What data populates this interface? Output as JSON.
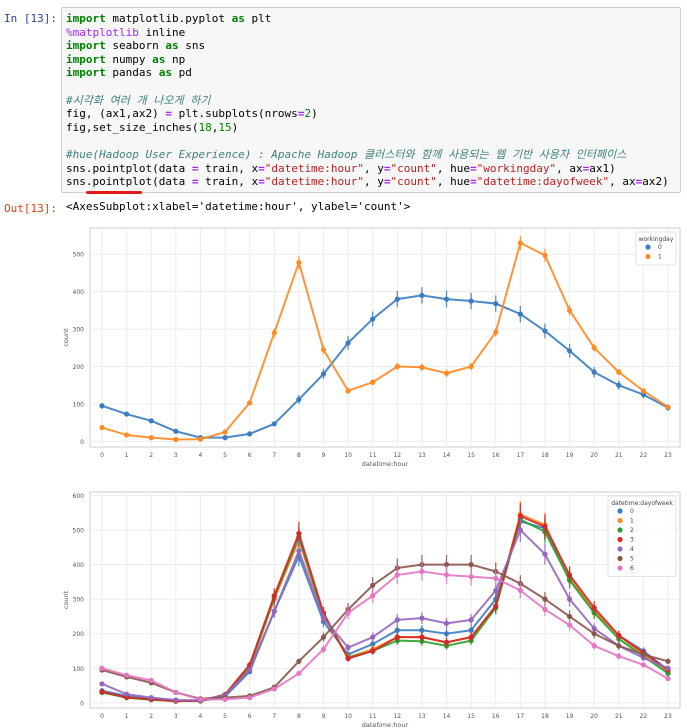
{
  "cells": {
    "in_prompt": "In [13]:",
    "out_prompt": "Out[13]:",
    "code_lines": [
      [
        {
          "t": "import",
          "c": "kw"
        },
        {
          "t": " matplotlib.pyplot ",
          "c": ""
        },
        {
          "t": "as",
          "c": "kw"
        },
        {
          "t": " plt",
          "c": ""
        }
      ],
      [
        {
          "t": "%matplotlib",
          "c": "mg"
        },
        {
          "t": " inline",
          "c": ""
        }
      ],
      [
        {
          "t": "import",
          "c": "kw"
        },
        {
          "t": " seaborn ",
          "c": ""
        },
        {
          "t": "as",
          "c": "kw"
        },
        {
          "t": " sns",
          "c": ""
        }
      ],
      [
        {
          "t": "import",
          "c": "kw"
        },
        {
          "t": " numpy ",
          "c": ""
        },
        {
          "t": "as",
          "c": "kw"
        },
        {
          "t": " np",
          "c": ""
        }
      ],
      [
        {
          "t": "import",
          "c": "kw"
        },
        {
          "t": " pandas ",
          "c": ""
        },
        {
          "t": "as",
          "c": "kw"
        },
        {
          "t": " pd",
          "c": ""
        }
      ],
      [],
      [
        {
          "t": "#시각화 여러 개 나오게 하기",
          "c": "cm"
        }
      ],
      [
        {
          "t": "fig, (ax1,ax2) ",
          "c": ""
        },
        {
          "t": "=",
          "c": "op"
        },
        {
          "t": " plt.subplots(nrows",
          "c": ""
        },
        {
          "t": "=",
          "c": "op"
        },
        {
          "t": "2",
          "c": "num"
        },
        {
          "t": ")",
          "c": ""
        }
      ],
      [
        {
          "t": "fig,set_size_inches(",
          "c": ""
        },
        {
          "t": "18",
          "c": "num"
        },
        {
          "t": ",",
          "c": ""
        },
        {
          "t": "15",
          "c": "num"
        },
        {
          "t": ")",
          "c": ""
        }
      ],
      [],
      [
        {
          "t": "#hue(Hadoop User Experience) : Apache Hadoop 클러스터와 함께 사용되는 웹 기반 사용자 인터페이스",
          "c": "cm"
        }
      ],
      [
        {
          "t": "sns.pointplot(data ",
          "c": ""
        },
        {
          "t": "=",
          "c": "op"
        },
        {
          "t": " train, x",
          "c": ""
        },
        {
          "t": "=",
          "c": "op"
        },
        {
          "t": "\"datetime:hour\"",
          "c": "str"
        },
        {
          "t": ", y",
          "c": ""
        },
        {
          "t": "=",
          "c": "op"
        },
        {
          "t": "\"count\"",
          "c": "str"
        },
        {
          "t": ", hue",
          "c": ""
        },
        {
          "t": "=",
          "c": "op"
        },
        {
          "t": "\"workingday\"",
          "c": "str"
        },
        {
          "t": ", ax",
          "c": ""
        },
        {
          "t": "=",
          "c": "op"
        },
        {
          "t": "ax1)",
          "c": ""
        }
      ],
      [
        {
          "t": "sns.pointplot(data ",
          "c": ""
        },
        {
          "t": "=",
          "c": "op"
        },
        {
          "t": " train, x",
          "c": ""
        },
        {
          "t": "=",
          "c": "op"
        },
        {
          "t": "\"datetime:hour\"",
          "c": "str"
        },
        {
          "t": ", y",
          "c": ""
        },
        {
          "t": "=",
          "c": "op"
        },
        {
          "t": "\"count\"",
          "c": "str"
        },
        {
          "t": ", hue",
          "c": ""
        },
        {
          "t": "=",
          "c": "op"
        },
        {
          "t": "\"datetime:dayofweek\"",
          "c": "str"
        },
        {
          "t": ", ax",
          "c": ""
        },
        {
          "t": "=",
          "c": "op"
        },
        {
          "t": "ax2)",
          "c": ""
        }
      ]
    ],
    "output_text": "<AxesSubplot:xlabel='datetime:hour', ylabel='count'>"
  },
  "chart_data": [
    {
      "type": "line",
      "xlabel": "datetime:hour",
      "ylabel": "count",
      "categories": [
        "0",
        "1",
        "2",
        "3",
        "4",
        "5",
        "6",
        "7",
        "8",
        "9",
        "10",
        "11",
        "12",
        "13",
        "14",
        "15",
        "16",
        "17",
        "18",
        "19",
        "20",
        "21",
        "22",
        "23"
      ],
      "yticks": [
        0,
        100,
        200,
        300,
        400,
        500
      ],
      "ylim": [
        -15,
        570
      ],
      "grid": true,
      "legend": {
        "title": "workingday",
        "placement": "top-right"
      },
      "series": [
        {
          "name": "0",
          "color": "#3a7dbf",
          "values": [
            95,
            73,
            55,
            27,
            10,
            10,
            20,
            47,
            112,
            180,
            263,
            327,
            380,
            390,
            380,
            375,
            368,
            340,
            295,
            242,
            185,
            150,
            125,
            90
          ],
          "err": [
            8,
            6,
            5,
            4,
            3,
            3,
            4,
            6,
            12,
            14,
            18,
            20,
            22,
            22,
            22,
            22,
            22,
            22,
            20,
            18,
            14,
            12,
            10,
            8
          ]
        },
        {
          "name": "1",
          "color": "#ff8a24",
          "values": [
            37,
            17,
            10,
            5,
            6,
            25,
            103,
            290,
            478,
            245,
            135,
            158,
            200,
            198,
            182,
            200,
            292,
            530,
            497,
            350,
            250,
            185,
            135,
            92
          ],
          "err": [
            4,
            3,
            3,
            2,
            2,
            3,
            6,
            12,
            18,
            12,
            8,
            8,
            10,
            10,
            10,
            10,
            12,
            18,
            18,
            14,
            10,
            8,
            6,
            5
          ]
        }
      ]
    },
    {
      "type": "line",
      "xlabel": "datetime:hour",
      "ylabel": "count",
      "categories": [
        "0",
        "1",
        "2",
        "3",
        "4",
        "5",
        "6",
        "7",
        "8",
        "9",
        "10",
        "11",
        "12",
        "13",
        "14",
        "15",
        "16",
        "17",
        "18",
        "19",
        "20",
        "21",
        "22",
        "23"
      ],
      "yticks": [
        0,
        100,
        200,
        300,
        400,
        500,
        600
      ],
      "ylim": [
        -15,
        610
      ],
      "grid": true,
      "legend": {
        "title": "datetime:dayofweek",
        "placement": "top-right"
      },
      "series": [
        {
          "name": "0",
          "color": "#3a7dbf",
          "values": [
            35,
            20,
            12,
            6,
            5,
            18,
            90,
            265,
            425,
            235,
            140,
            170,
            210,
            210,
            200,
            210,
            300,
            525,
            505,
            360,
            265,
            195,
            150,
            95
          ]
        },
        {
          "name": "1",
          "color": "#ff8a24",
          "values": [
            30,
            15,
            9,
            5,
            6,
            22,
            100,
            300,
            470,
            250,
            132,
            155,
            190,
            190,
            175,
            190,
            280,
            545,
            515,
            365,
            265,
            195,
            140,
            90
          ]
        },
        {
          "name": "2",
          "color": "#2ca02c",
          "values": [
            30,
            15,
            9,
            5,
            6,
            22,
            105,
            305,
            480,
            255,
            130,
            150,
            180,
            178,
            165,
            180,
            275,
            530,
            495,
            355,
            260,
            185,
            135,
            85
          ]
        },
        {
          "name": "3",
          "color": "#d62728",
          "values": [
            32,
            16,
            10,
            5,
            6,
            24,
            110,
            310,
            490,
            260,
            128,
            150,
            190,
            190,
            175,
            190,
            280,
            540,
            510,
            370,
            275,
            195,
            145,
            95
          ]
        },
        {
          "name": "4",
          "color": "#9467bd",
          "values": [
            55,
            25,
            15,
            8,
            7,
            22,
            95,
            265,
            440,
            245,
            160,
            190,
            240,
            245,
            230,
            240,
            325,
            500,
            430,
            300,
            215,
            165,
            130,
            100
          ]
        },
        {
          "name": "5",
          "color": "#8c564b",
          "values": [
            95,
            75,
            58,
            30,
            12,
            15,
            20,
            45,
            120,
            190,
            270,
            340,
            390,
            400,
            400,
            400,
            380,
            345,
            300,
            250,
            200,
            165,
            140,
            120
          ]
        },
        {
          "name": "6",
          "color": "#e377c2",
          "values": [
            100,
            80,
            65,
            30,
            10,
            10,
            15,
            40,
            85,
            155,
            260,
            310,
            370,
            380,
            370,
            365,
            360,
            325,
            270,
            225,
            165,
            135,
            110,
            70
          ]
        }
      ]
    }
  ]
}
